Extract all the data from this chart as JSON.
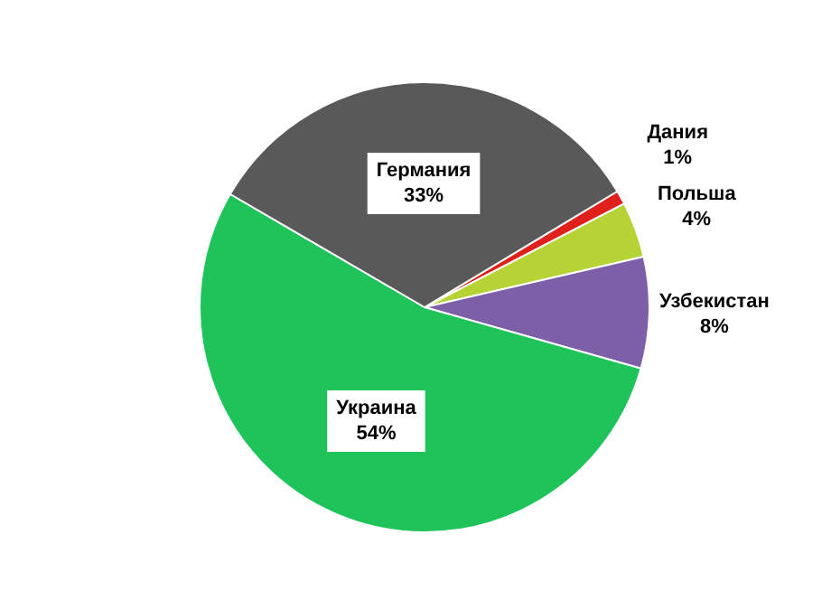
{
  "chart_data": {
    "type": "pie",
    "categories": [
      "Дания",
      "Польша",
      "Узбекистан",
      "Украина",
      "Германия"
    ],
    "values": [
      1,
      4,
      8,
      54,
      33
    ],
    "value_labels": [
      "1%",
      "4%",
      "8%",
      "54%",
      "33%"
    ],
    "colors": [
      "#e0201b",
      "#b5d334",
      "#7d5fa8",
      "#1ec45a",
      "#595959"
    ],
    "legend": false
  }
}
